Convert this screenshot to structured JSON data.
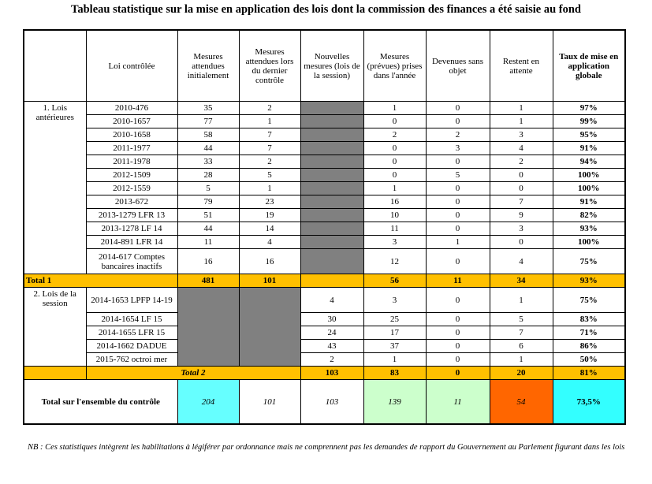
{
  "title": "Tableau statistique sur la mise en application des lois dont la commission des finances a été saisie au fond",
  "headers": {
    "loi": "Loi contrôlée",
    "mesures_attendues": "Mesures attendues initialement",
    "mesures_dernier": "Mesures attendues lors du dernier contrôle",
    "nouvelles": "Nouvelles mesures (lois de la session)",
    "prises": "Mesures (prévues) prises dans l'année",
    "sans_objet": "Devenues sans objet",
    "restent": "Restent en attente",
    "taux": "Taux de mise en application globale"
  },
  "group1": {
    "label": "1. Lois antérieures",
    "rows": [
      {
        "loi": "2010-476",
        "a": "35",
        "d": "2",
        "p": "1",
        "s": "0",
        "r": "1",
        "t": "97%"
      },
      {
        "loi": "2010-1657",
        "a": "77",
        "d": "1",
        "p": "0",
        "s": "0",
        "r": "1",
        "t": "99%"
      },
      {
        "loi": "2010-1658",
        "a": "58",
        "d": "7",
        "p": "2",
        "s": "2",
        "r": "3",
        "t": "95%"
      },
      {
        "loi": "2011-1977",
        "a": "44",
        "d": "7",
        "p": "0",
        "s": "3",
        "r": "4",
        "t": "91%"
      },
      {
        "loi": "2011-1978",
        "a": "33",
        "d": "2",
        "p": "0",
        "s": "0",
        "r": "2",
        "t": "94%"
      },
      {
        "loi": "2012-1509",
        "a": "28",
        "d": "5",
        "p": "0",
        "s": "5",
        "r": "0",
        "t": "100%"
      },
      {
        "loi": "2012-1559",
        "a": "5",
        "d": "1",
        "p": "1",
        "s": "0",
        "r": "0",
        "t": "100%"
      },
      {
        "loi": "2013-672",
        "a": "79",
        "d": "23",
        "p": "16",
        "s": "0",
        "r": "7",
        "t": "91%"
      },
      {
        "loi": "2013-1279 LFR 13",
        "a": "51",
        "d": "19",
        "p": "10",
        "s": "0",
        "r": "9",
        "t": "82%"
      },
      {
        "loi": "2013-1278 LF 14",
        "a": "44",
        "d": "14",
        "p": "11",
        "s": "0",
        "r": "3",
        "t": "93%"
      },
      {
        "loi": "2014-891 LFR 14",
        "a": "11",
        "d": "4",
        "p": "3",
        "s": "1",
        "r": "0",
        "t": "100%"
      },
      {
        "loi": "2014-617 Comptes bancaires inactifs",
        "a": "16",
        "d": "16",
        "p": "12",
        "s": "0",
        "r": "4",
        "t": "75%"
      }
    ]
  },
  "total1": {
    "label": "Total 1",
    "a": "481",
    "d": "101",
    "p": "56",
    "s": "11",
    "r": "34",
    "t": "93%"
  },
  "group2": {
    "label": "2. Lois de la session",
    "rows": [
      {
        "loi": "2014-1653 LPFP 14-19",
        "n": "4",
        "p": "3",
        "s": "0",
        "r": "1",
        "t": "75%"
      },
      {
        "loi": "2014-1654 LF 15",
        "n": "30",
        "p": "25",
        "s": "0",
        "r": "5",
        "t": "83%"
      },
      {
        "loi": "2014-1655 LFR 15",
        "n": "24",
        "p": "17",
        "s": "0",
        "r": "7",
        "t": "71%"
      },
      {
        "loi": "2014-1662 DADUE",
        "n": "43",
        "p": "37",
        "s": "0",
        "r": "6",
        "t": "86%"
      },
      {
        "loi": "2015-762 octroi mer",
        "n": "2",
        "p": "1",
        "s": "0",
        "r": "1",
        "t": "50%"
      }
    ]
  },
  "total2": {
    "label": "Total 2",
    "n": "103",
    "p": "83",
    "s": "0",
    "r": "20",
    "t": "81%"
  },
  "grand": {
    "label": "Total sur l'ensemble du contrôle",
    "a": "204",
    "d": "101",
    "n": "103",
    "p": "139",
    "s": "11",
    "r": "54",
    "t": "73,5%"
  },
  "colors": {
    "total_row": "#ffc000",
    "grey_cell": "#808080",
    "cyan": "#66ffff",
    "green": "#ccffcc",
    "orange": "#ff6600",
    "teal": "#33ffff"
  },
  "note": "NB : Ces statistiques intègrent les habilitations à légiférer par ordonnance mais ne comprennent pas les demandes de rapport du Gouvernement au Parlement figurant dans les lois"
}
